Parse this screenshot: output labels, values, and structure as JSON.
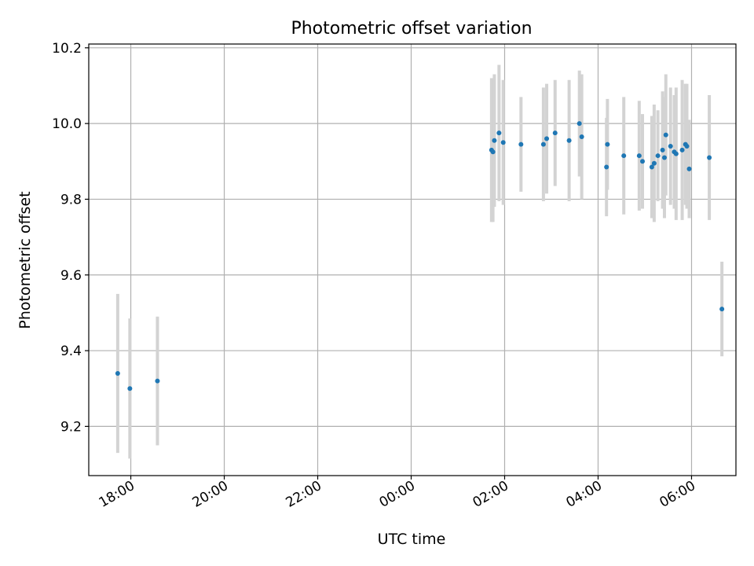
{
  "chart_data": {
    "type": "scatter",
    "title": "Photometric offset variation",
    "xlabel": "UTC time",
    "ylabel": "Photometric offset",
    "xlim": [
      -6.9,
      6.95
    ],
    "ylim": [
      9.07,
      10.21
    ],
    "x_unit": "hours relative to 00:00 UTC",
    "x_ticks": [
      {
        "value": -6,
        "label": "18:00"
      },
      {
        "value": -4,
        "label": "20:00"
      },
      {
        "value": -2,
        "label": "22:00"
      },
      {
        "value": 0,
        "label": "00:00"
      },
      {
        "value": 2,
        "label": "02:00"
      },
      {
        "value": 4,
        "label": "04:00"
      },
      {
        "value": 6,
        "label": "06:00"
      }
    ],
    "y_ticks": [
      {
        "value": 9.2,
        "label": "9.2"
      },
      {
        "value": 9.4,
        "label": "9.4"
      },
      {
        "value": 9.6,
        "label": "9.6"
      },
      {
        "value": 9.8,
        "label": "9.8"
      },
      {
        "value": 10.0,
        "label": "10.0"
      },
      {
        "value": 10.2,
        "label": "10.2"
      }
    ],
    "grid": true,
    "point_color": "#1f77b4",
    "errorbar_color": "#d3d3d3",
    "points": [
      {
        "x": -6.28,
        "y": 9.34,
        "err": 0.21
      },
      {
        "x": -6.02,
        "y": 9.3,
        "err": 0.185
      },
      {
        "x": -5.43,
        "y": 9.32,
        "err": 0.17
      },
      {
        "x": 1.72,
        "y": 9.93,
        "err": 0.19
      },
      {
        "x": 1.75,
        "y": 9.925,
        "err": 0.185
      },
      {
        "x": 1.78,
        "y": 9.955,
        "err": 0.175
      },
      {
        "x": 1.88,
        "y": 9.975,
        "err": 0.18
      },
      {
        "x": 1.97,
        "y": 9.95,
        "err": 0.165
      },
      {
        "x": 2.35,
        "y": 9.945,
        "err": 0.125
      },
      {
        "x": 2.83,
        "y": 9.945,
        "err": 0.15
      },
      {
        "x": 2.9,
        "y": 9.96,
        "err": 0.145
      },
      {
        "x": 3.08,
        "y": 9.975,
        "err": 0.14
      },
      {
        "x": 3.38,
        "y": 9.955,
        "err": 0.16
      },
      {
        "x": 3.6,
        "y": 10.0,
        "err": 0.14
      },
      {
        "x": 3.65,
        "y": 9.965,
        "err": 0.165
      },
      {
        "x": 4.18,
        "y": 9.885,
        "err": 0.13
      },
      {
        "x": 4.2,
        "y": 9.945,
        "err": 0.12
      },
      {
        "x": 4.55,
        "y": 9.915,
        "err": 0.155
      },
      {
        "x": 4.88,
        "y": 9.915,
        "err": 0.145
      },
      {
        "x": 4.95,
        "y": 9.9,
        "err": 0.125
      },
      {
        "x": 5.15,
        "y": 9.885,
        "err": 0.135
      },
      {
        "x": 5.2,
        "y": 9.895,
        "err": 0.155
      },
      {
        "x": 5.28,
        "y": 9.915,
        "err": 0.12
      },
      {
        "x": 5.38,
        "y": 9.93,
        "err": 0.155
      },
      {
        "x": 5.42,
        "y": 9.91,
        "err": 0.16
      },
      {
        "x": 5.45,
        "y": 9.97,
        "err": 0.16
      },
      {
        "x": 5.55,
        "y": 9.94,
        "err": 0.155
      },
      {
        "x": 5.63,
        "y": 9.925,
        "err": 0.15
      },
      {
        "x": 5.67,
        "y": 9.92,
        "err": 0.175
      },
      {
        "x": 5.8,
        "y": 9.93,
        "err": 0.185
      },
      {
        "x": 5.87,
        "y": 9.945,
        "err": 0.16
      },
      {
        "x": 5.9,
        "y": 9.94,
        "err": 0.165
      },
      {
        "x": 5.95,
        "y": 9.88,
        "err": 0.13
      },
      {
        "x": 6.38,
        "y": 9.91,
        "err": 0.165
      },
      {
        "x": 6.65,
        "y": 9.51,
        "err": 0.125
      }
    ]
  }
}
